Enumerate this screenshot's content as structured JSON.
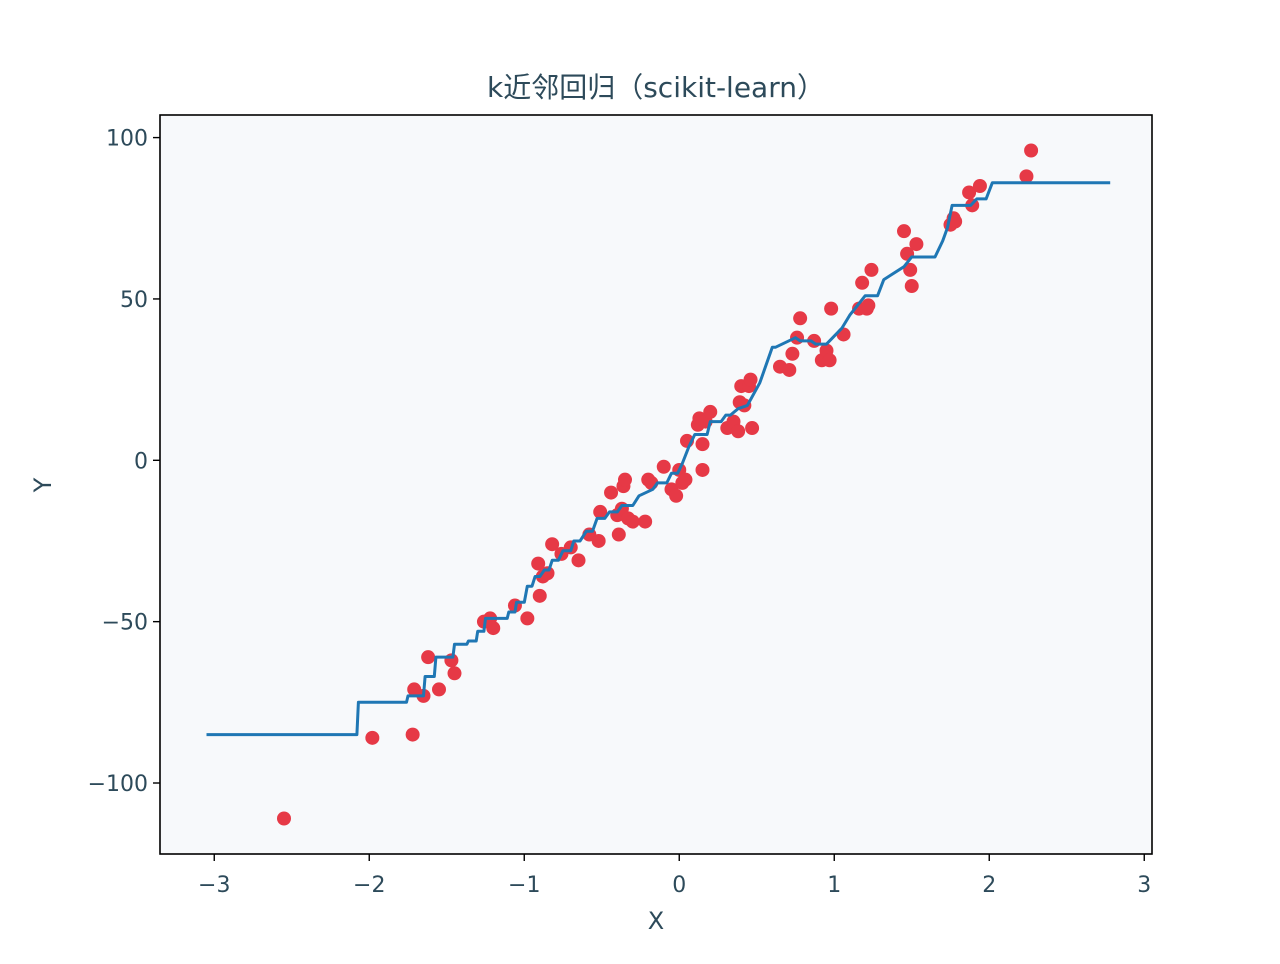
{
  "chart_data": {
    "type": "scatter",
    "title": "k近邻回归（scikit-learn）",
    "xlabel": "X",
    "ylabel": "Y",
    "xlim": [
      -3.35,
      3.05
    ],
    "ylim": [
      -122,
      107
    ],
    "xticks": [
      -3,
      -2,
      -1,
      0,
      1,
      2,
      3
    ],
    "xtick_labels": [
      "−3",
      "−2",
      "−1",
      "0",
      "1",
      "2",
      "3"
    ],
    "yticks": [
      -100,
      -50,
      0,
      50,
      100
    ],
    "ytick_labels": [
      "−100",
      "−50",
      "0",
      "50",
      "100"
    ],
    "grid": false,
    "legend": "none",
    "colors": {
      "scatter": "#e63946",
      "line": "#1f77b4",
      "plot_background": "#f7f9fb",
      "text": "#2d4a5a"
    },
    "series": [
      {
        "kind": "scatter",
        "x": [
          -2.55,
          -1.98,
          -1.72,
          -1.71,
          -1.65,
          -1.62,
          -1.55,
          -1.47,
          -1.45,
          -1.26,
          -1.22,
          -1.2,
          -1.06,
          -0.98,
          -0.91,
          -0.9,
          -0.88,
          -0.85,
          -0.82,
          -0.76,
          -0.7,
          -0.65,
          -0.58,
          -0.52,
          -0.51,
          -0.44,
          -0.4,
          -0.39,
          -0.37,
          -0.36,
          -0.35,
          -0.33,
          -0.3,
          -0.22,
          -0.2,
          -0.18,
          -0.1,
          -0.05,
          -0.02,
          0.0,
          0.02,
          0.04,
          0.05,
          0.12,
          0.13,
          0.15,
          0.15,
          0.17,
          0.2,
          0.31,
          0.35,
          0.38,
          0.39,
          0.4,
          0.42,
          0.45,
          0.46,
          0.47,
          0.65,
          0.71,
          0.73,
          0.76,
          0.78,
          0.87,
          0.92,
          0.95,
          0.97,
          0.98,
          1.06,
          1.16,
          1.18,
          1.21,
          1.22,
          1.24,
          1.45,
          1.47,
          1.49,
          1.5,
          1.53,
          1.75,
          1.77,
          1.78,
          1.87,
          1.89,
          1.94,
          2.24,
          2.27
        ],
        "y": [
          -111,
          -86,
          -85,
          -71,
          -73,
          -61,
          -71,
          -62,
          -66,
          -50,
          -49,
          -52,
          -45,
          -49,
          -32,
          -42,
          -36,
          -35,
          -26,
          -29,
          -27,
          -31,
          -23,
          -25,
          -16,
          -10,
          -17,
          -23,
          -15,
          -8,
          -6,
          -18,
          -19,
          -19,
          -6,
          -7,
          -2,
          -9,
          -11,
          -3,
          -7,
          -6,
          6,
          11,
          13,
          5,
          -3,
          12,
          15,
          10,
          12,
          9,
          18,
          23,
          17,
          23,
          25,
          10,
          29,
          28,
          33,
          38,
          44,
          37,
          31,
          34,
          31,
          47,
          39,
          47,
          55,
          47,
          48,
          59,
          71,
          64,
          59,
          54,
          67,
          73,
          75,
          74,
          83,
          79,
          85,
          88,
          96
        ]
      },
      {
        "kind": "line",
        "x": [
          -3.05,
          -2.08,
          -2.07,
          -1.76,
          -1.75,
          -1.65,
          -1.64,
          -1.58,
          -1.57,
          -1.46,
          -1.45,
          -1.37,
          -1.36,
          -1.31,
          -1.3,
          -1.26,
          -1.25,
          -1.11,
          -1.1,
          -1.06,
          -1.05,
          -1.0,
          -0.98,
          -0.95,
          -0.93,
          -0.9,
          -0.87,
          -0.84,
          -0.82,
          -0.78,
          -0.75,
          -0.7,
          -0.68,
          -0.64,
          -0.6,
          -0.56,
          -0.53,
          -0.48,
          -0.45,
          -0.4,
          -0.37,
          -0.3,
          -0.26,
          -0.17,
          -0.14,
          -0.08,
          -0.05,
          -0.01,
          0.02,
          0.06,
          0.1,
          0.18,
          0.2,
          0.27,
          0.3,
          0.33,
          0.38,
          0.44,
          0.52,
          0.6,
          0.62,
          0.75,
          0.78,
          0.85,
          0.88,
          0.95,
          0.99,
          1.05,
          1.1,
          1.15,
          1.2,
          1.28,
          1.32,
          1.45,
          1.5,
          1.65,
          1.7,
          1.73,
          1.76,
          1.88,
          1.92,
          1.98,
          2.02,
          2.06,
          2.2,
          2.35,
          2.5,
          2.65,
          2.78
        ],
        "y": [
          -85,
          -85,
          -75,
          -75,
          -73,
          -73,
          -67,
          -67,
          -61,
          -61,
          -57,
          -57,
          -56,
          -56,
          -53,
          -53,
          -49,
          -49,
          -47,
          -47,
          -44,
          -44,
          -39,
          -39,
          -36,
          -36,
          -34,
          -34,
          -31,
          -31,
          -28,
          -28,
          -25,
          -25,
          -22,
          -22,
          -18,
          -18,
          -16,
          -16,
          -14,
          -14,
          -11,
          -9,
          -7,
          -7,
          -4,
          -4,
          -1,
          4,
          8,
          8,
          12,
          12,
          14,
          14,
          16,
          17,
          24,
          35,
          35,
          38,
          37,
          37,
          36,
          36,
          38,
          41,
          45,
          48,
          51,
          51,
          56,
          60,
          63,
          63,
          68,
          72,
          79,
          79,
          81,
          81,
          86,
          86,
          86,
          86,
          86,
          86,
          86
        ]
      }
    ]
  }
}
